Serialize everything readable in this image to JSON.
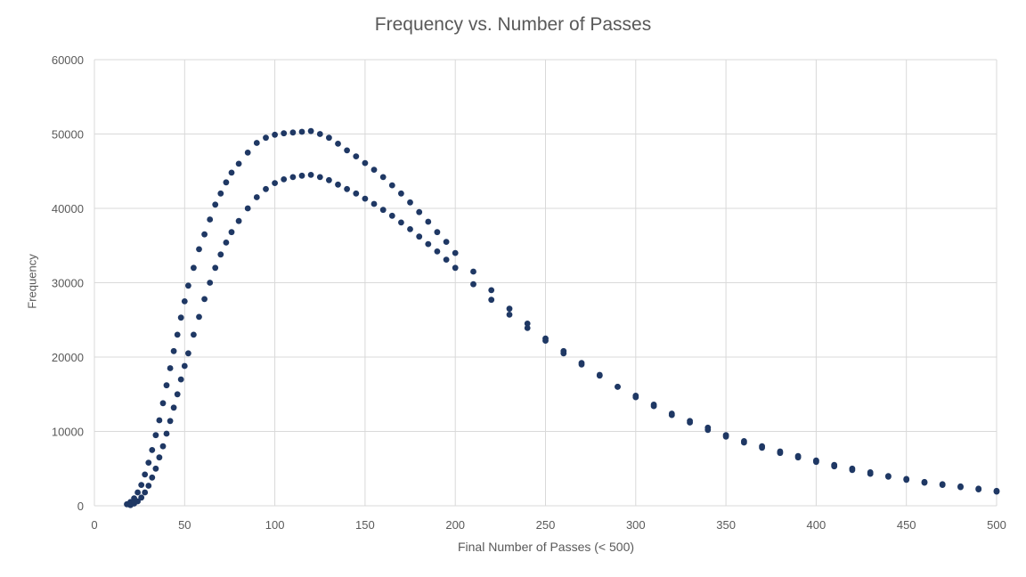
{
  "chart_data": {
    "type": "scatter",
    "title": "Frequency vs. Number of Passes",
    "xlabel": "Final Number of Passes (< 500)",
    "ylabel": "Frequency",
    "xlim": [
      0,
      500
    ],
    "ylim": [
      0,
      60000
    ],
    "x_ticks": [
      "0",
      "50",
      "100",
      "150",
      "200",
      "250",
      "300",
      "350",
      "400",
      "450",
      "500"
    ],
    "y_ticks": [
      "0",
      "10000",
      "20000",
      "30000",
      "40000",
      "50000",
      "60000"
    ],
    "grid": true,
    "legend": "none",
    "marker_color": "#1f3864",
    "series": [
      {
        "points": [
          [
            18,
            200
          ],
          [
            20,
            500
          ],
          [
            22,
            1000
          ],
          [
            24,
            1800
          ],
          [
            26,
            2800
          ],
          [
            28,
            4200
          ],
          [
            30,
            5800
          ],
          [
            32,
            7500
          ],
          [
            34,
            9500
          ],
          [
            36,
            11500
          ],
          [
            38,
            13800
          ],
          [
            40,
            16200
          ],
          [
            42,
            18500
          ],
          [
            44,
            20800
          ],
          [
            46,
            23000
          ],
          [
            48,
            25300
          ],
          [
            50,
            27500
          ],
          [
            52,
            29600
          ],
          [
            55,
            32000
          ],
          [
            58,
            34500
          ],
          [
            61,
            36500
          ],
          [
            64,
            38500
          ],
          [
            67,
            40500
          ],
          [
            70,
            42000
          ],
          [
            73,
            43500
          ],
          [
            76,
            44800
          ],
          [
            80,
            46000
          ],
          [
            85,
            47500
          ],
          [
            90,
            48800
          ],
          [
            95,
            49500
          ],
          [
            100,
            49900
          ],
          [
            105,
            50100
          ],
          [
            110,
            50200
          ],
          [
            115,
            50300
          ],
          [
            120,
            50400
          ],
          [
            125,
            50000
          ],
          [
            130,
            49500
          ],
          [
            135,
            48700
          ],
          [
            140,
            47800
          ],
          [
            145,
            47000
          ],
          [
            150,
            46100
          ],
          [
            155,
            45200
          ],
          [
            160,
            44200
          ],
          [
            165,
            43100
          ],
          [
            170,
            42000
          ],
          [
            175,
            40800
          ],
          [
            180,
            39500
          ],
          [
            185,
            38200
          ],
          [
            190,
            36800
          ],
          [
            195,
            35500
          ],
          [
            200,
            34000
          ],
          [
            210,
            31500
          ],
          [
            220,
            29000
          ],
          [
            230,
            26500
          ],
          [
            240,
            24500
          ],
          [
            250,
            22500
          ],
          [
            260,
            20800
          ],
          [
            270,
            19200
          ],
          [
            280,
            17600
          ],
          [
            290,
            16000
          ],
          [
            300,
            14800
          ],
          [
            310,
            13600
          ],
          [
            320,
            12400
          ],
          [
            330,
            11400
          ],
          [
            340,
            10500
          ],
          [
            350,
            9500
          ],
          [
            360,
            8700
          ],
          [
            370,
            8000
          ],
          [
            380,
            7300
          ],
          [
            390,
            6700
          ],
          [
            400,
            6100
          ],
          [
            410,
            5500
          ],
          [
            420,
            5000
          ],
          [
            430,
            4500
          ],
          [
            440,
            4000
          ],
          [
            450,
            3600
          ],
          [
            460,
            3200
          ],
          [
            470,
            2900
          ],
          [
            480,
            2600
          ],
          [
            490,
            2300
          ],
          [
            500,
            2000
          ]
        ]
      },
      {
        "points": [
          [
            20,
            100
          ],
          [
            22,
            300
          ],
          [
            24,
            600
          ],
          [
            26,
            1100
          ],
          [
            28,
            1800
          ],
          [
            30,
            2700
          ],
          [
            32,
            3800
          ],
          [
            34,
            5000
          ],
          [
            36,
            6500
          ],
          [
            38,
            8000
          ],
          [
            40,
            9700
          ],
          [
            42,
            11400
          ],
          [
            44,
            13200
          ],
          [
            46,
            15000
          ],
          [
            48,
            17000
          ],
          [
            50,
            18800
          ],
          [
            52,
            20500
          ],
          [
            55,
            23000
          ],
          [
            58,
            25400
          ],
          [
            61,
            27800
          ],
          [
            64,
            30000
          ],
          [
            67,
            32000
          ],
          [
            70,
            33800
          ],
          [
            73,
            35400
          ],
          [
            76,
            36800
          ],
          [
            80,
            38300
          ],
          [
            85,
            40000
          ],
          [
            90,
            41500
          ],
          [
            95,
            42600
          ],
          [
            100,
            43400
          ],
          [
            105,
            43900
          ],
          [
            110,
            44200
          ],
          [
            115,
            44400
          ],
          [
            120,
            44500
          ],
          [
            125,
            44200
          ],
          [
            130,
            43800
          ],
          [
            135,
            43200
          ],
          [
            140,
            42600
          ],
          [
            145,
            42000
          ],
          [
            150,
            41300
          ],
          [
            155,
            40600
          ],
          [
            160,
            39800
          ],
          [
            165,
            39000
          ],
          [
            170,
            38100
          ],
          [
            175,
            37200
          ],
          [
            180,
            36200
          ],
          [
            185,
            35200
          ],
          [
            190,
            34200
          ],
          [
            195,
            33100
          ],
          [
            200,
            32000
          ],
          [
            210,
            29800
          ],
          [
            220,
            27700
          ],
          [
            230,
            25700
          ],
          [
            240,
            23900
          ],
          [
            250,
            22200
          ],
          [
            260,
            20500
          ],
          [
            270,
            19000
          ],
          [
            280,
            17500
          ],
          [
            290,
            16000
          ],
          [
            300,
            14600
          ],
          [
            310,
            13400
          ],
          [
            320,
            12200
          ],
          [
            330,
            11200
          ],
          [
            340,
            10200
          ],
          [
            350,
            9300
          ],
          [
            360,
            8500
          ],
          [
            370,
            7800
          ],
          [
            380,
            7100
          ],
          [
            390,
            6500
          ],
          [
            400,
            5900
          ],
          [
            410,
            5300
          ],
          [
            420,
            4800
          ],
          [
            430,
            4300
          ],
          [
            440,
            3900
          ],
          [
            450,
            3500
          ],
          [
            460,
            3100
          ],
          [
            470,
            2800
          ],
          [
            480,
            2500
          ],
          [
            490,
            2200
          ],
          [
            500,
            1900
          ]
        ]
      }
    ]
  }
}
